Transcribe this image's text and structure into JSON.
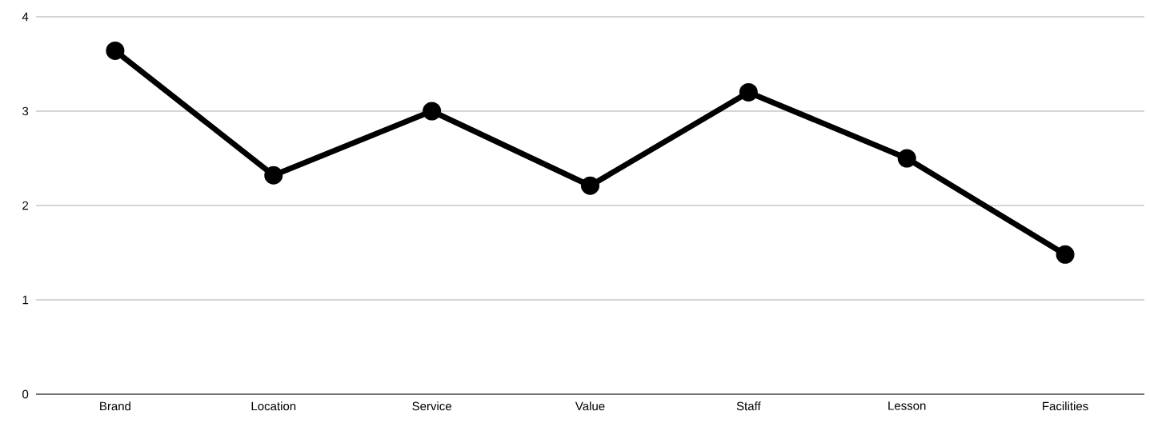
{
  "chart_data": {
    "type": "line",
    "categories": [
      "Brand",
      "Location",
      "Service",
      "Value",
      "Staff",
      "Lesson",
      "Facilities"
    ],
    "series": [
      {
        "color": "#000000",
        "values": [
          3.64,
          2.32,
          3.0,
          2.21,
          3.2,
          2.5,
          1.48
        ]
      }
    ],
    "ylim": [
      0,
      4
    ],
    "yticks": [
      0,
      1,
      2,
      3,
      4
    ],
    "grid": "y",
    "marker": "circle",
    "line_style": "solid"
  }
}
